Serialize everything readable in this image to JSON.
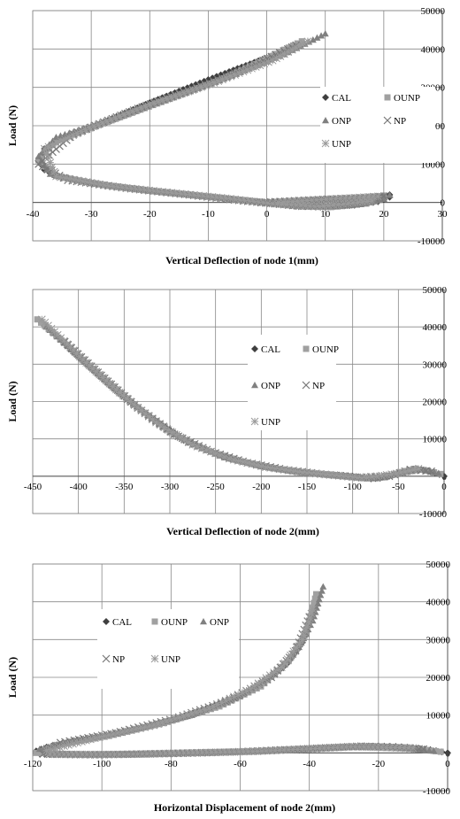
{
  "colors": {
    "CAL": "#3f3f3f",
    "OUNP": "#a0a0a0",
    "ONP": "#808080",
    "NP": "#777777",
    "UNP": "#9a9a9a"
  },
  "chart_data": [
    {
      "type": "scatter",
      "title": "",
      "xlabel": "Vertical Deflection of node 1(mm)",
      "ylabel": "Load (N)",
      "xlim": [
        -40,
        30
      ],
      "ylim": [
        -10000,
        50000
      ],
      "xticks": [
        -40,
        -30,
        -20,
        -10,
        0,
        10,
        20,
        30
      ],
      "yticks": [
        -10000,
        0,
        10000,
        20000,
        30000,
        40000,
        50000
      ],
      "x_tick_labels": [
        "-40",
        "-30",
        "-20",
        "-10",
        "0",
        "10",
        "20",
        "30"
      ],
      "y_tick_labels": [
        "-10000",
        "0",
        "10000",
        "20000",
        "30000",
        "40000",
        "50000"
      ],
      "legend_position": "right",
      "legend_cols": 2,
      "series": [
        {
          "name": "CAL",
          "marker": "diamond",
          "x": [
            0,
            5,
            10,
            15,
            19,
            21,
            21,
            19,
            15,
            10,
            5,
            0,
            -5,
            -10,
            -15,
            -20,
            -25,
            -30,
            -35,
            -38,
            -39,
            -38,
            -35,
            -30,
            -25,
            -20,
            -15,
            -10,
            -5,
            0,
            4
          ],
          "y": [
            0,
            400,
            800,
            1100,
            1500,
            2000,
            1400,
            200,
            -700,
            -1200,
            -1000,
            0,
            700,
            1500,
            2300,
            3100,
            4000,
            5000,
            6500,
            8500,
            11000,
            14000,
            16500,
            19500,
            22800,
            26000,
            29000,
            32000,
            34900,
            37700,
            40000
          ]
        },
        {
          "name": "OUNP",
          "marker": "square",
          "x": [
            0,
            6,
            12,
            17,
            20,
            20,
            17,
            11,
            5,
            0,
            -8,
            -18,
            -28,
            -36,
            -39,
            -36,
            -28,
            -18,
            -8,
            0,
            6
          ],
          "y": [
            0,
            500,
            900,
            1300,
            1800,
            1000,
            -300,
            -1200,
            -900,
            0,
            1200,
            2700,
            4600,
            6900,
            11000,
            16000,
            20600,
            26200,
            31800,
            37600,
            42000
          ]
        },
        {
          "name": "ONP",
          "marker": "triangle",
          "x": [
            1,
            7,
            13,
            18,
            21,
            20,
            16,
            10,
            4,
            -2,
            -10,
            -20,
            -30,
            -37,
            -39,
            -36,
            -27,
            -16,
            -6,
            3,
            10
          ],
          "y": [
            0,
            500,
            1000,
            1400,
            1900,
            900,
            -500,
            -1100,
            -700,
            200,
            1500,
            3000,
            5000,
            7400,
            12000,
            17000,
            21400,
            27500,
            33000,
            38600,
            44000
          ]
        },
        {
          "name": "NP",
          "marker": "x",
          "x": [
            -1,
            8,
            16,
            20,
            14,
            6,
            -4,
            -14,
            -24,
            -34,
            -39,
            -33,
            -22,
            -12,
            -2,
            5
          ],
          "y": [
            0,
            700,
            1200,
            1600,
            -600,
            -1000,
            400,
            2100,
            3700,
            5800,
            10000,
            17800,
            24500,
            30000,
            36000,
            41000
          ]
        },
        {
          "name": "UNP",
          "marker": "asterisk",
          "x": [
            2,
            11,
            19,
            18,
            9,
            1,
            -7,
            -17,
            -27,
            -36,
            -38,
            -31,
            -20,
            -9,
            1,
            7
          ],
          "y": [
            0,
            900,
            1600,
            400,
            -1100,
            -300,
            1100,
            2600,
            4300,
            6800,
            14000,
            19000,
            25500,
            31200,
            37000,
            42000
          ]
        }
      ]
    },
    {
      "type": "scatter",
      "title": "",
      "xlabel": "Vertical Deflection of node 2(mm)",
      "ylabel": "Load (N)",
      "xlim": [
        -450,
        0
      ],
      "ylim": [
        -10000,
        50000
      ],
      "xticks": [
        -450,
        -400,
        -350,
        -300,
        -250,
        -200,
        -150,
        -100,
        -50,
        0
      ],
      "yticks": [
        -10000,
        0,
        10000,
        20000,
        30000,
        40000,
        50000
      ],
      "x_tick_labels": [
        "-450",
        "-400",
        "-350",
        "-300",
        "-250",
        "-200",
        "-150",
        "-100",
        "-50",
        "0"
      ],
      "y_tick_labels": [
        "-10000",
        "0",
        "10000",
        "20000",
        "30000",
        "40000",
        "50000"
      ],
      "legend_position": "top-center",
      "legend_cols": 2,
      "series": [
        {
          "name": "CAL",
          "marker": "diamond",
          "x": [
            0,
            -10,
            -20,
            -30,
            -40,
            -50,
            -60,
            -70,
            -80,
            -90,
            -100,
            -110,
            -130,
            -150,
            -170,
            -190,
            -210,
            -230,
            -250,
            -270,
            -290,
            -310,
            -330,
            -350,
            -370,
            -390,
            -410,
            -430,
            -440
          ],
          "y": [
            0,
            900,
            1600,
            2000,
            1700,
            800,
            0,
            -500,
            -700,
            -400,
            0,
            200,
            500,
            900,
            1500,
            2300,
            3300,
            4600,
            6200,
            8200,
            10800,
            14000,
            17600,
            21600,
            25800,
            30200,
            34600,
            39000,
            41000
          ]
        },
        {
          "name": "OUNP",
          "marker": "square",
          "x": [
            -4,
            -18,
            -32,
            -47,
            -65,
            -85,
            -105,
            -140,
            -180,
            -220,
            -260,
            -300,
            -340,
            -380,
            -420,
            -445
          ],
          "y": [
            600,
            1500,
            1950,
            1100,
            -300,
            -600,
            -100,
            700,
            1900,
            3900,
            7000,
            11800,
            19200,
            28000,
            36800,
            42000
          ]
        },
        {
          "name": "ONP",
          "marker": "triangle",
          "x": [
            -6,
            -25,
            -45,
            -75,
            -100,
            -125,
            -160,
            -200,
            -240,
            -280,
            -320,
            -360,
            -400,
            -435
          ],
          "y": [
            800,
            1800,
            900,
            -600,
            -200,
            300,
            1100,
            2600,
            5000,
            9000,
            15600,
            23400,
            32200,
            40000
          ]
        },
        {
          "name": "NP",
          "marker": "x",
          "x": [
            -14,
            -37,
            -60,
            -95,
            -135,
            -175,
            -215,
            -255,
            -295,
            -335,
            -375,
            -415
          ],
          "y": [
            1300,
            1800,
            0,
            -300,
            600,
            1800,
            3600,
            6600,
            11200,
            18300,
            27000,
            36000
          ]
        },
        {
          "name": "UNP",
          "marker": "asterisk",
          "x": [
            -28,
            -52,
            -90,
            -115,
            -155,
            -195,
            -235,
            -275,
            -315,
            -355,
            -395,
            -440
          ],
          "y": [
            2000,
            700,
            -500,
            100,
            1000,
            2400,
            4700,
            8400,
            14400,
            22400,
            31200,
            42000
          ]
        }
      ]
    },
    {
      "type": "scatter",
      "title": "",
      "xlabel": "Horizontal Displacement of node 2(mm)",
      "ylabel": "Load (N)",
      "xlim": [
        -120,
        0
      ],
      "ylim": [
        -10000,
        50000
      ],
      "xticks": [
        -120,
        -100,
        -80,
        -60,
        -40,
        -20,
        0
      ],
      "yticks": [
        -10000,
        0,
        10000,
        20000,
        30000,
        40000,
        50000
      ],
      "x_tick_labels": [
        "-120",
        "-100",
        "-80",
        "-60",
        "-40",
        "-20",
        "0"
      ],
      "y_tick_labels": [
        "-10000",
        "0",
        "10000",
        "20000",
        "30000",
        "40000",
        "50000"
      ],
      "legend_position": "top-left",
      "legend_cols": 3,
      "series": [
        {
          "name": "CAL",
          "marker": "diamond",
          "x": [
            0,
            -5,
            -10,
            -15,
            -20,
            -25,
            -30,
            -40,
            -50,
            -60,
            -70,
            -80,
            -90,
            -100,
            -110,
            -118,
            -119,
            -116,
            -110,
            -100,
            -90,
            -80,
            -70,
            -60,
            -52,
            -46,
            -42,
            -40,
            -38
          ],
          "y": [
            0,
            800,
            1400,
            1700,
            1800,
            1700,
            1500,
            1000,
            600,
            300,
            0,
            -200,
            -400,
            -500,
            -500,
            -200,
            500,
            1500,
            2700,
            4300,
            6300,
            8700,
            11600,
            15200,
            19400,
            24000,
            29300,
            34500,
            40000
          ]
        },
        {
          "name": "OUNP",
          "marker": "square",
          "x": [
            -2,
            -12,
            -22,
            -35,
            -50,
            -65,
            -85,
            -105,
            -119,
            -113,
            -98,
            -82,
            -66,
            -54,
            -46,
            -41,
            -38
          ],
          "y": [
            300,
            1400,
            1800,
            1300,
            600,
            200,
            -300,
            -500,
            0,
            2100,
            4500,
            7900,
            12300,
            17600,
            24300,
            31500,
            42000
          ]
        },
        {
          "name": "ONP",
          "marker": "triangle",
          "x": [
            -4,
            -17,
            -30,
            -48,
            -68,
            -90,
            -112,
            -118,
            -108,
            -92,
            -74,
            -60,
            -50,
            -43,
            -39,
            -36
          ],
          "y": [
            500,
            1700,
            1500,
            700,
            100,
            -400,
            -400,
            1000,
            3300,
            6000,
            10000,
            15200,
            21000,
            28000,
            35000,
            44000
          ]
        },
        {
          "name": "NP",
          "marker": "x",
          "x": [
            -7,
            -25,
            -43,
            -63,
            -82,
            -102,
            -117,
            -112,
            -96,
            -79,
            -63,
            -51,
            -44,
            -40
          ],
          "y": [
            1000,
            1800,
            1000,
            200,
            -200,
            -500,
            -300,
            2700,
            5300,
            9100,
            14000,
            20000,
            27000,
            36000
          ]
        },
        {
          "name": "UNP",
          "marker": "asterisk",
          "x": [
            -10,
            -28,
            -55,
            -75,
            -95,
            -115,
            -116,
            -102,
            -85,
            -69,
            -57,
            -48,
            -42,
            -39
          ],
          "y": [
            1300,
            1600,
            400,
            0,
            -400,
            -400,
            600,
            3900,
            7300,
            11800,
            17000,
            22700,
            30000,
            38000
          ]
        }
      ]
    }
  ]
}
